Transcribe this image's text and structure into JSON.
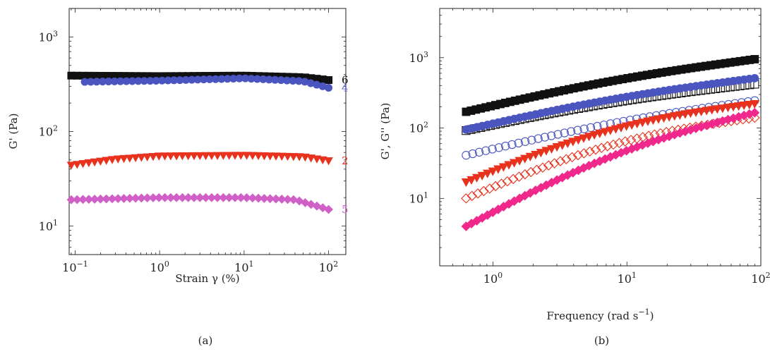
{
  "colors": {
    "black": "#111111",
    "blue": "#4a55c0",
    "red": "#e8321e",
    "magenta": "#d060c8",
    "pink": "#f0288c"
  },
  "chart_data": [
    {
      "type": "scatter",
      "panel_label": "(a)",
      "xlabel": "Strain γ (%)",
      "ylabel": "G' (Pa)",
      "x_scale": "log",
      "y_scale": "log",
      "xlim": [
        0.085,
        160
      ],
      "ylim": [
        5,
        2000
      ],
      "x_ticks": [
        {
          "value": 0.1,
          "label": "10",
          "exp": "−1"
        },
        {
          "value": 1,
          "label": "10",
          "exp": "0"
        },
        {
          "value": 10,
          "label": "10",
          "exp": "1"
        },
        {
          "value": 100,
          "label": "10",
          "exp": "2"
        }
      ],
      "y_ticks": [
        {
          "value": 10,
          "label": "10",
          "exp": "1"
        },
        {
          "value": 100,
          "label": "10",
          "exp": "2"
        },
        {
          "value": 1000,
          "label": "10",
          "exp": "3"
        }
      ],
      "series": [
        {
          "end_label": "6",
          "marker": "square",
          "filled": true,
          "color": "#111111",
          "x_range": [
            0.09,
            100
          ],
          "points": 45,
          "profile": [
            [
              0.09,
              390
            ],
            [
              1,
              385
            ],
            [
              10,
              390
            ],
            [
              50,
              375
            ],
            [
              100,
              350
            ]
          ]
        },
        {
          "end_label": "4",
          "marker": "circle",
          "filled": true,
          "color": "#4a55c0",
          "x_range": [
            0.13,
            100
          ],
          "points": 42,
          "profile": [
            [
              0.13,
              335
            ],
            [
              1,
              345
            ],
            [
              10,
              365
            ],
            [
              50,
              340
            ],
            [
              100,
              290
            ]
          ]
        },
        {
          "end_label": "2",
          "marker": "triangle-down",
          "filled": true,
          "color": "#e8321e",
          "x_range": [
            0.09,
            100
          ],
          "points": 45,
          "profile": [
            [
              0.09,
              44
            ],
            [
              0.3,
              51
            ],
            [
              1,
              55
            ],
            [
              10,
              56
            ],
            [
              50,
              54
            ],
            [
              100,
              49
            ]
          ]
        },
        {
          "end_label": "5",
          "marker": "diamond",
          "filled": true,
          "color": "#d060c8",
          "x_range": [
            0.09,
            100
          ],
          "points": 45,
          "profile": [
            [
              0.09,
              19
            ],
            [
              1,
              20
            ],
            [
              10,
              20
            ],
            [
              40,
              19
            ],
            [
              100,
              15
            ]
          ]
        }
      ]
    },
    {
      "type": "scatter",
      "panel_label": "(b)",
      "xlabel": "Frequency (rad s",
      "xlabel_sup": "−1",
      "xlabel_end": ")",
      "ylabel": "G', G'' (Pa)",
      "x_scale": "log",
      "y_scale": "log",
      "xlim": [
        0.4,
        100
      ],
      "ylim": [
        1.1,
        5000
      ],
      "x_ticks": [
        {
          "value": 1,
          "label": "10",
          "exp": "0"
        },
        {
          "value": 10,
          "label": "10",
          "exp": "1"
        },
        {
          "value": 100,
          "label": "10",
          "exp": "2"
        }
      ],
      "y_ticks": [
        {
          "value": 10,
          "label": "10",
          "exp": "1"
        },
        {
          "value": 100,
          "label": "10",
          "exp": "2"
        },
        {
          "value": 1000,
          "label": "10",
          "exp": "3"
        }
      ],
      "series": [
        {
          "marker": "square",
          "filled": true,
          "color": "#111111",
          "x_range": [
            0.63,
            90
          ],
          "points": 60,
          "y_start": 170,
          "y_end": 950
        },
        {
          "marker": "square",
          "filled": false,
          "color": "#111111",
          "x_range": [
            0.63,
            90
          ],
          "points": 60,
          "y_start": 92,
          "y_end": 420
        },
        {
          "marker": "circle",
          "filled": true,
          "color": "#4a55c0",
          "x_range": [
            0.63,
            90
          ],
          "points": 55,
          "y_start": 95,
          "y_end": 510
        },
        {
          "marker": "circle",
          "filled": false,
          "color": "#4a55c0",
          "x_range": [
            0.63,
            90
          ],
          "points": 45,
          "y_start": 41,
          "y_end": 245
        },
        {
          "marker": "triangle-down",
          "filled": true,
          "color": "#e8321e",
          "x_range": [
            0.63,
            90
          ],
          "points": 55,
          "y_start": 17,
          "y_end": 220
        },
        {
          "marker": "diamond",
          "filled": false,
          "color": "#e8321e",
          "x_range": [
            0.63,
            90
          ],
          "points": 50,
          "y_start": 10,
          "y_end": 140
        },
        {
          "marker": "diamond",
          "filled": true,
          "color": "#f0288c",
          "x_range": [
            0.63,
            90
          ],
          "points": 55,
          "y_start": 4,
          "y_end": 165
        }
      ]
    }
  ]
}
